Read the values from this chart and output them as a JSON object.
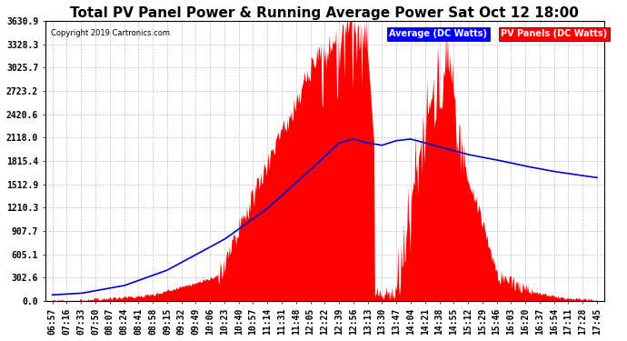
{
  "title": "Total PV Panel Power & Running Average Power Sat Oct 12 18:00",
  "copyright": "Copyright 2019 Cartronics.com",
  "legend_avg": "Average (DC Watts)",
  "legend_pv": "PV Panels (DC Watts)",
  "ymax": 3630.9,
  "yticks": [
    0.0,
    302.6,
    605.1,
    907.7,
    1210.3,
    1512.9,
    1815.4,
    2118.0,
    2420.6,
    2723.2,
    3025.7,
    3328.3,
    3630.9
  ],
  "xtick_labels": [
    "06:57",
    "07:16",
    "07:33",
    "07:50",
    "08:07",
    "08:24",
    "08:41",
    "08:58",
    "09:15",
    "09:32",
    "09:49",
    "10:06",
    "10:23",
    "10:40",
    "10:57",
    "11:14",
    "11:31",
    "11:48",
    "12:05",
    "12:22",
    "12:39",
    "12:56",
    "13:13",
    "13:30",
    "13:47",
    "14:04",
    "14:21",
    "14:38",
    "14:55",
    "15:12",
    "15:29",
    "15:46",
    "16:03",
    "16:20",
    "16:37",
    "16:54",
    "17:11",
    "17:28",
    "17:45"
  ],
  "bg_color": "#ffffff",
  "plot_bg": "#ffffff",
  "area_color": "#ff0000",
  "line_color": "#0000cc",
  "grid_color": "#aaaaaa",
  "title_fontsize": 11,
  "tick_fontsize": 7,
  "copyright_fontsize": 6
}
